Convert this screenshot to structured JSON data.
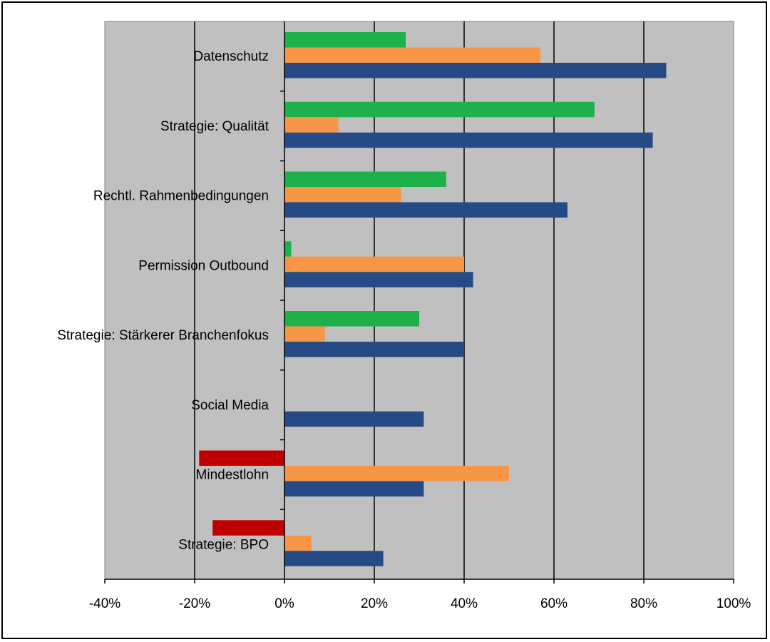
{
  "chart_data": {
    "type": "bar",
    "orientation": "horizontal",
    "title": "",
    "xlabel": "",
    "ylabel": "",
    "xlim": [
      -0.4,
      1.0
    ],
    "x_ticks": [
      -0.4,
      -0.2,
      0,
      0.2,
      0.4,
      0.6,
      0.8,
      1.0
    ],
    "x_tick_labels": [
      "-40%",
      "-20%",
      "0%",
      "20%",
      "40%",
      "60%",
      "80%",
      "100%"
    ],
    "grid": "vertical gridlines at major ticks",
    "legend": "none",
    "categories": [
      "Datenschutz",
      "Strategie: Qualität",
      "Rechtl. Rahmenbedingungen",
      "Permission Outbound",
      "Strategie: Stärkerer Branchenfokus",
      "Social Media",
      "Mindestlohn",
      "Strategie: BPO"
    ],
    "series": [
      {
        "name": "series-green",
        "color": "#1eb14b",
        "values": [
          0.27,
          0.69,
          0.36,
          0.015,
          0.3,
          0,
          null,
          null
        ]
      },
      {
        "name": "series-red",
        "color": "#c00000",
        "values": [
          null,
          null,
          null,
          null,
          null,
          null,
          -0.19,
          -0.16
        ]
      },
      {
        "name": "series-orange",
        "color": "#f79646",
        "values": [
          0.57,
          0.12,
          0.26,
          0.4,
          0.09,
          0,
          0.5,
          0.06
        ]
      },
      {
        "name": "series-blue",
        "color": "#254a85",
        "values": [
          0.85,
          0.82,
          0.63,
          0.42,
          0.4,
          0.31,
          0.31,
          0.22
        ]
      }
    ]
  },
  "colors": {
    "plot_background": "#c0c0c0",
    "gridline": "#000000"
  }
}
